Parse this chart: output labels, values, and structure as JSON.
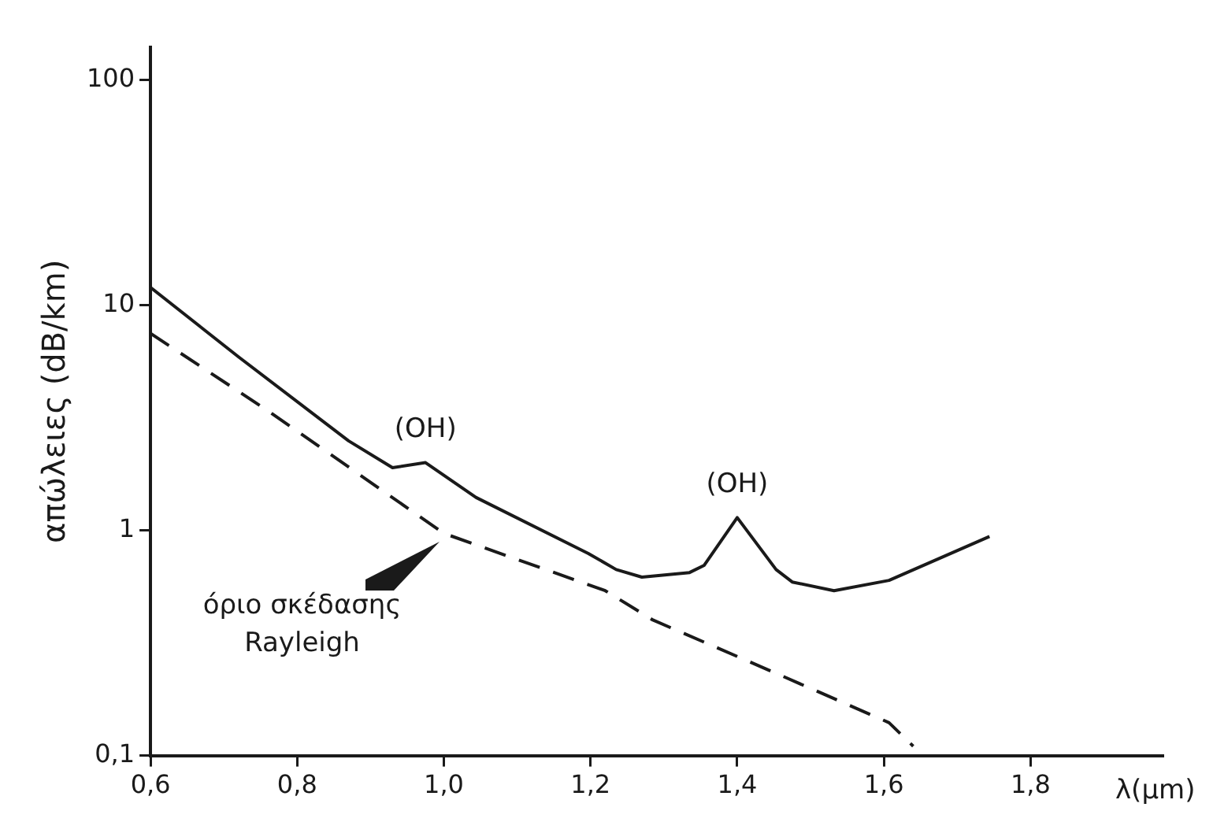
{
  "chart_data": {
    "type": "line",
    "xlabel": "λ(μm)",
    "ylabel": "απώλειες (dB/km)",
    "x": [
      0.6,
      0.72,
      0.87,
      0.93,
      0.975,
      1.044,
      1.197,
      1.235,
      1.27,
      1.335,
      1.355,
      1.4,
      1.453,
      1.475,
      1.532,
      1.607,
      1.744
    ],
    "series": [
      {
        "color": "#1a1a1a",
        "line_style": "solid",
        "values": [
          12,
          5.9,
          2.5,
          1.9,
          2.0,
          1.4,
          0.79,
          0.67,
          0.62,
          0.65,
          0.7,
          1.14,
          0.67,
          0.59,
          0.54,
          0.6,
          0.94
        ]
      },
      {
        "color": "#1a1a1a",
        "line_style": "dashed",
        "x": [
          0.6,
          0.76,
          1.0,
          1.22,
          1.285,
          1.43,
          1.607,
          1.64
        ],
        "values": [
          7.5,
          3.4,
          0.97,
          0.54,
          0.4,
          0.25,
          0.14,
          0.11
        ]
      }
    ],
    "log": "y",
    "grid": false,
    "legend": false,
    "marker": "none",
    "xlim": [
      0.6,
      1.98
    ],
    "ylim": [
      0.1,
      140
    ],
    "xticks": [
      {
        "value": 0.6,
        "label": "0,6"
      },
      {
        "value": 0.8,
        "label": "0,8"
      },
      {
        "value": 1.0,
        "label": "1,0"
      },
      {
        "value": 1.2,
        "label": "1,2"
      },
      {
        "value": 1.4,
        "label": "1,4"
      },
      {
        "value": 1.6,
        "label": "1,6"
      },
      {
        "value": 1.8,
        "label": "1,8"
      }
    ],
    "yticks": [
      {
        "value": 0.1,
        "label": "0,1"
      },
      1,
      10,
      100
    ],
    "annotations": [
      {
        "text": "(OH)",
        "x": 0.975,
        "y": 2.0
      },
      {
        "text": "(OH)",
        "x": 1.4,
        "y": 1.14
      },
      {
        "text": "όριο σκέδασης\nRayleigh",
        "x": 1.0,
        "y": 0.97
      }
    ]
  }
}
